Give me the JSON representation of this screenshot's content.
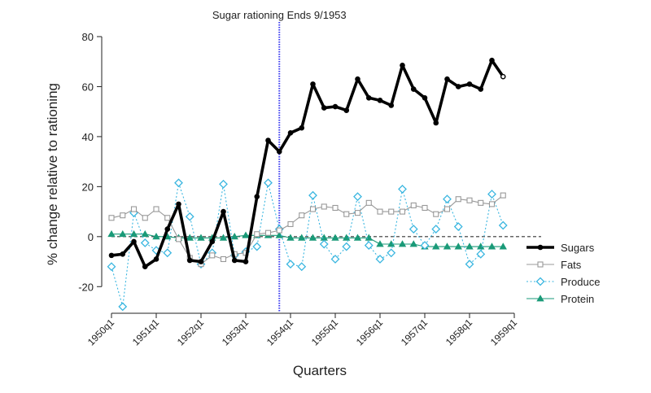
{
  "chart_data": {
    "type": "line",
    "title": "",
    "annotation": "Sugar rationing Ends 9/1953",
    "annotation_x": 1953.75,
    "xlabel": "Quarters",
    "ylabel": "% change relative to rationing",
    "xlim": [
      1950.0,
      1959.0
    ],
    "ylim": [
      -30,
      80
    ],
    "yticks": [
      -20,
      0,
      20,
      40,
      60,
      80
    ],
    "xticks": [
      {
        "value": 1950.0,
        "label": "1950q1"
      },
      {
        "value": 1951.0,
        "label": "1951q1"
      },
      {
        "value": 1952.0,
        "label": "1952q1"
      },
      {
        "value": 1953.0,
        "label": "1953q1"
      },
      {
        "value": 1954.0,
        "label": "1954q1"
      },
      {
        "value": 1955.0,
        "label": "1955q1"
      },
      {
        "value": 1956.0,
        "label": "1956q1"
      },
      {
        "value": 1957.0,
        "label": "1957q1"
      },
      {
        "value": 1958.0,
        "label": "1958q1"
      },
      {
        "value": 1959.0,
        "label": "1959q1"
      }
    ],
    "zero_line": "dashed",
    "legend_position": "right",
    "x": [
      1950.0,
      1950.25,
      1950.5,
      1950.75,
      1951.0,
      1951.25,
      1951.5,
      1951.75,
      1952.0,
      1952.25,
      1952.5,
      1952.75,
      1953.0,
      1953.25,
      1953.5,
      1953.75,
      1954.0,
      1954.25,
      1954.5,
      1954.75,
      1955.0,
      1955.25,
      1955.5,
      1955.75,
      1956.0,
      1956.25,
      1956.5,
      1956.75,
      1957.0,
      1957.25,
      1957.5,
      1957.75,
      1958.0,
      1958.25,
      1958.5,
      1958.75
    ],
    "series": [
      {
        "name": "Sugars",
        "color": "#000000",
        "marker": "circle",
        "dash": "solid",
        "values": [
          -7.5,
          -7,
          -2,
          -12,
          -9,
          3,
          13,
          -9.5,
          -10,
          -2,
          10,
          -9.5,
          -10,
          16,
          38.5,
          34,
          41.5,
          43.5,
          61,
          51.5,
          52,
          50.5,
          63,
          55.5,
          54.5,
          52.5,
          68.5,
          59,
          55.5,
          45.5,
          63,
          60,
          61,
          59,
          70.5,
          64
        ]
      },
      {
        "name": "Fats",
        "color": "#999999",
        "marker": "square",
        "dash": "solid",
        "values": [
          7.5,
          8.5,
          11,
          7.5,
          11,
          7.5,
          -1,
          -8.5,
          -11,
          -7.5,
          -9,
          -7,
          -6.5,
          1,
          1.5,
          2.5,
          5,
          8.5,
          11,
          12,
          11.5,
          9,
          9.5,
          13.5,
          10,
          10,
          10,
          12.5,
          11.5,
          9,
          11,
          15,
          14.5,
          13.5,
          13,
          16.5
        ]
      },
      {
        "name": "Produce",
        "color": "#3ab6e0",
        "marker": "diamond",
        "dash": "dotted",
        "values": [
          -12,
          -28,
          9.5,
          -2.5,
          -5.5,
          -6.5,
          21.5,
          8,
          -11,
          -6.5,
          21,
          -7.5,
          -6,
          -4,
          21.5,
          3,
          -11,
          -12,
          16.5,
          -3,
          -9,
          -4,
          16,
          -3.5,
          -9,
          -6.5,
          19,
          3,
          -3.5,
          3,
          15,
          4,
          -11,
          -7,
          17,
          4.5
        ]
      },
      {
        "name": "Protein",
        "color": "#1a9a78",
        "marker": "triangle",
        "dash": "solid",
        "values": [
          1,
          1,
          1,
          1,
          0,
          0,
          -0.5,
          -0.5,
          -0.5,
          -0.5,
          -0.5,
          0,
          0.5,
          0.5,
          0.5,
          0.5,
          -0.5,
          -0.5,
          -0.5,
          -0.5,
          -0.5,
          -0.5,
          -0.5,
          -0.5,
          -3,
          -3,
          -3,
          -3,
          -4,
          -4,
          -4,
          -4,
          -4,
          -4,
          -4,
          -4
        ]
      }
    ]
  }
}
